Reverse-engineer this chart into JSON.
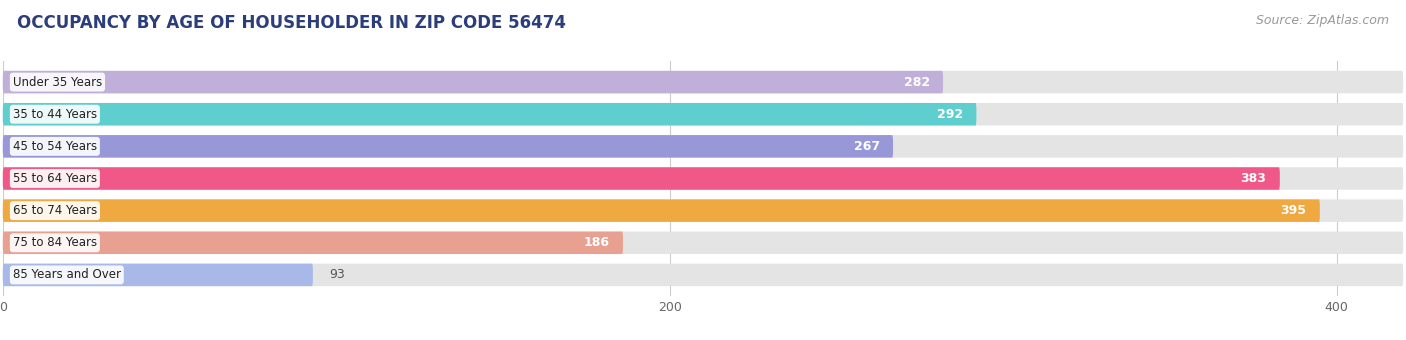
{
  "title": "OCCUPANCY BY AGE OF HOUSEHOLDER IN ZIP CODE 56474",
  "source": "Source: ZipAtlas.com",
  "categories": [
    "Under 35 Years",
    "35 to 44 Years",
    "45 to 54 Years",
    "55 to 64 Years",
    "65 to 74 Years",
    "75 to 84 Years",
    "85 Years and Over"
  ],
  "values": [
    282,
    292,
    267,
    383,
    395,
    186,
    93
  ],
  "bar_colors": [
    "#c0afd8",
    "#5ecece",
    "#9898d8",
    "#f05888",
    "#f0a840",
    "#e8a090",
    "#a8b8e8"
  ],
  "xlim_max": 420,
  "xticks": [
    0,
    200,
    400
  ],
  "background_color": "#ffffff",
  "bar_bg_color": "#e4e4e4",
  "title_color": "#2c3e7a",
  "source_color": "#999999",
  "label_color_white": "#ffffff",
  "label_color_dark": "#555555",
  "title_fontsize": 12,
  "source_fontsize": 9,
  "tick_fontsize": 9,
  "bar_label_fontsize": 9,
  "category_fontsize": 8.5,
  "bar_height": 0.7,
  "low_value_threshold": 140,
  "figwidth": 14.06,
  "figheight": 3.4,
  "dpi": 100
}
